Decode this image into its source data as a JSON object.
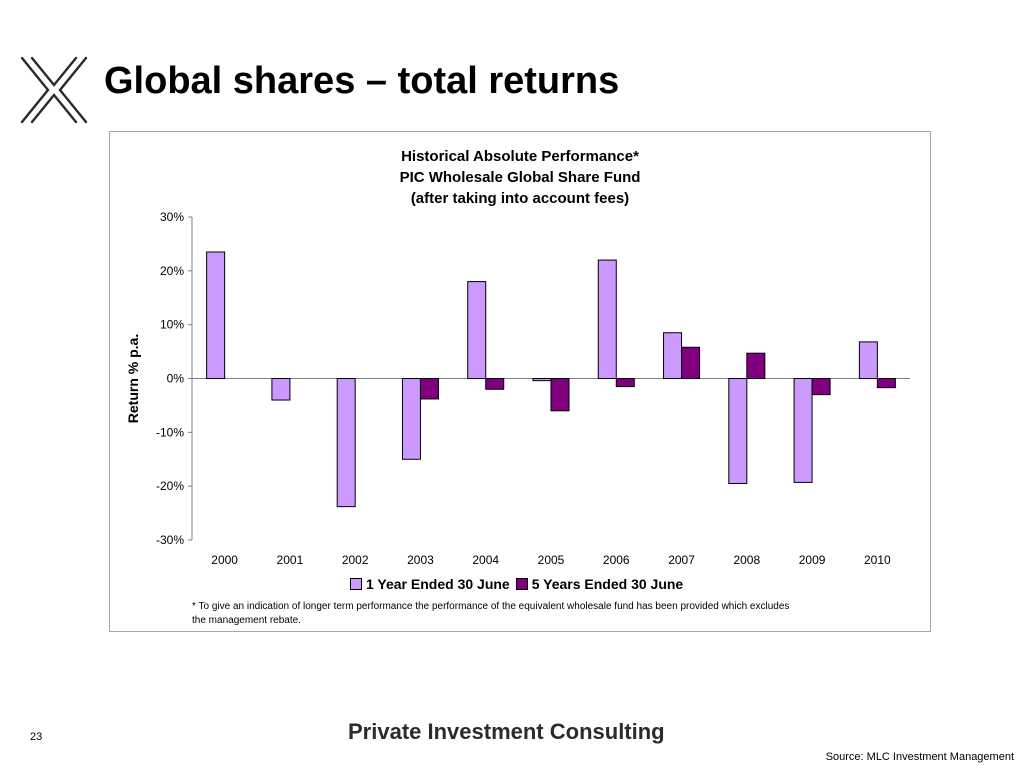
{
  "slide": {
    "title": "Global shares – total returns",
    "page_number": "23",
    "brand": "Private Investment Consulting",
    "source": "Source: MLC Investment Management",
    "logo_icon": "x-cross-logo-icon"
  },
  "chart": {
    "title_line1": "Historical Absolute Performance*",
    "title_line2": "PIC Wholesale Global Share Fund",
    "title_line3": "(after taking into account fees)",
    "footnote_line1": "* To give an indication of longer term performance the performance of the equivalent wholesale fund has been provided which excludes",
    "footnote_line2": "the management rebate."
  },
  "chart_data": {
    "type": "bar",
    "title": "Historical Absolute Performance* PIC Wholesale Global Share Fund (after taking into account fees)",
    "ylabel": "Return % p.a.",
    "xlabel": "",
    "categories": [
      "2000",
      "2001",
      "2002",
      "2003",
      "2004",
      "2005",
      "2006",
      "2007",
      "2008",
      "2009",
      "2010"
    ],
    "series": [
      {
        "name": "1 Year Ended 30 June",
        "color": "#cc99ff",
        "values": [
          23.5,
          -4.0,
          -23.8,
          -15.0,
          18.0,
          -0.4,
          22.0,
          8.5,
          -19.5,
          -19.3,
          6.8
        ]
      },
      {
        "name": "5 Years Ended 30 June",
        "color": "#800080",
        "values": [
          null,
          null,
          null,
          -3.8,
          -2.0,
          -6.0,
          -1.5,
          5.8,
          4.7,
          -3.0,
          -1.7
        ]
      }
    ],
    "ylim": [
      -30,
      30
    ],
    "yticks": [
      30,
      20,
      10,
      0,
      -10,
      -20,
      -30
    ],
    "ytick_labels": [
      "30%",
      "20%",
      "10%",
      "0%",
      "-10%",
      "-20%",
      "-30%"
    ],
    "grid": false,
    "legend_position": "bottom"
  }
}
